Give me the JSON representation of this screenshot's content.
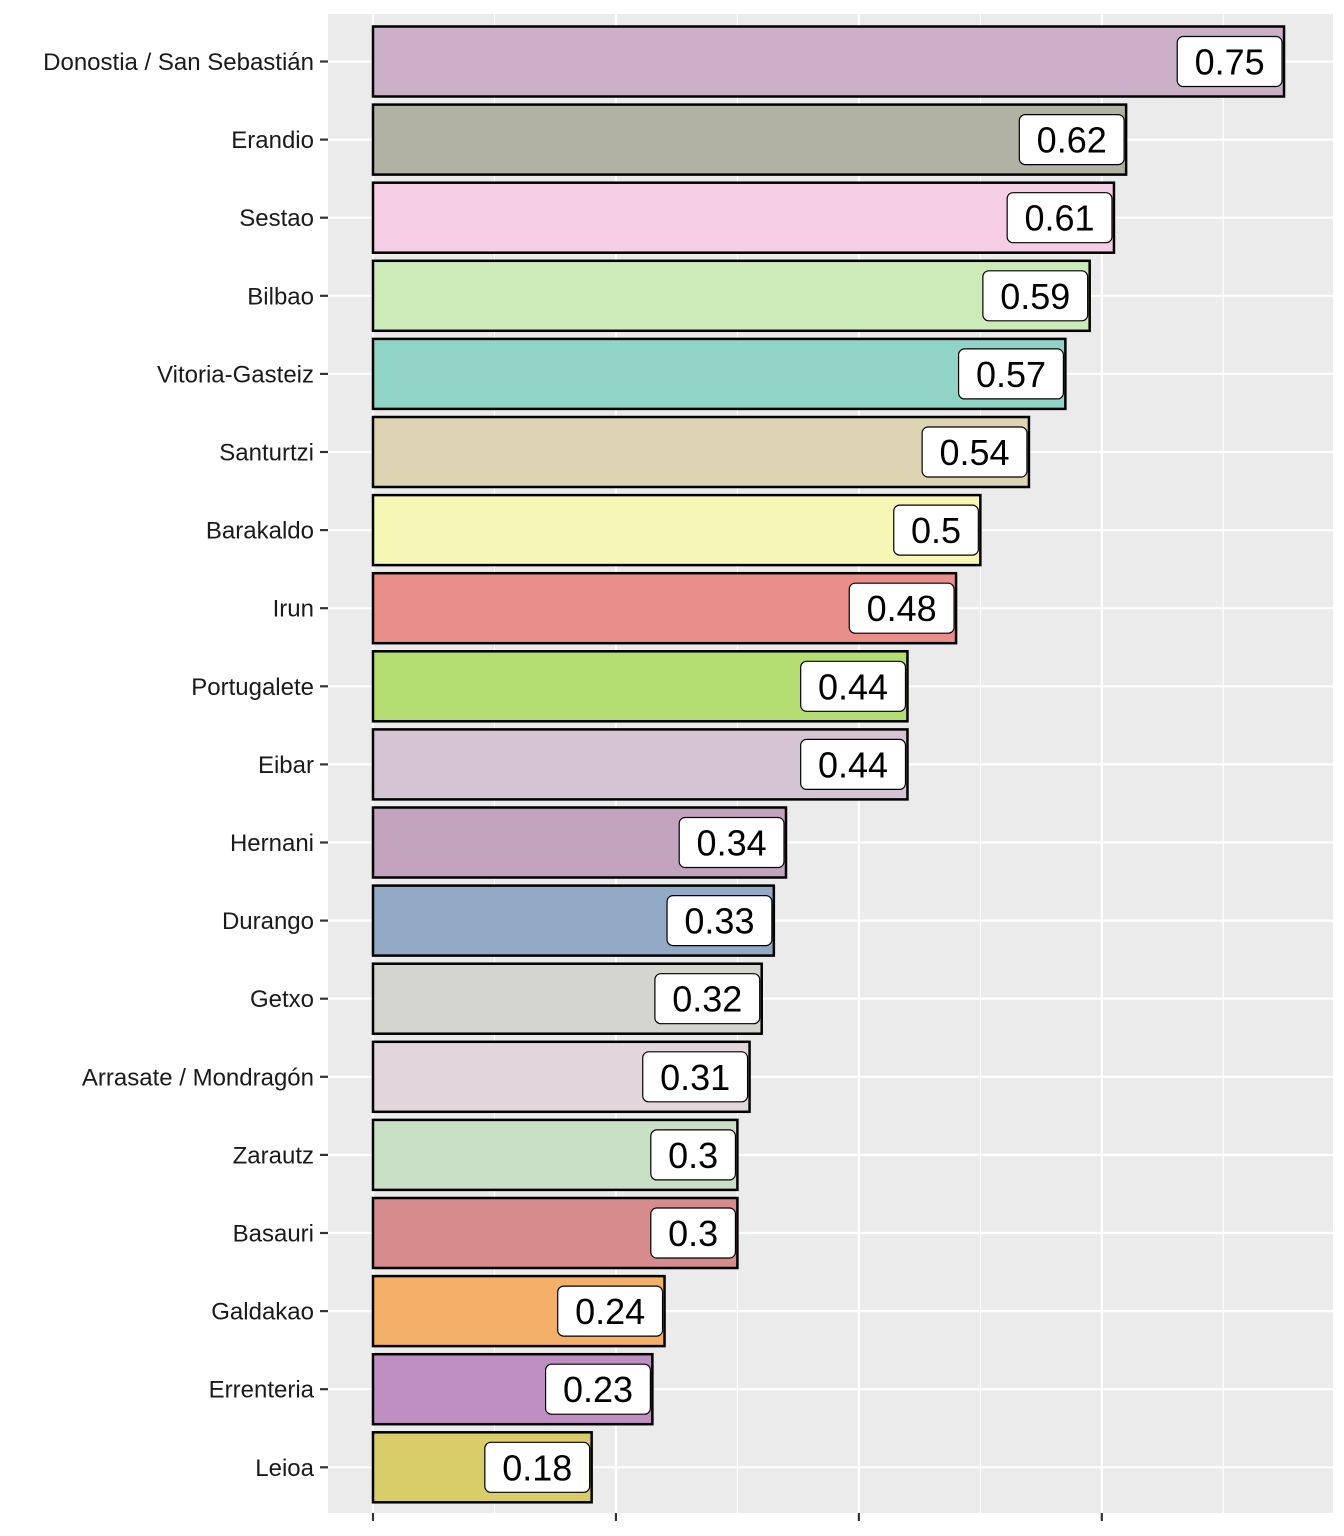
{
  "chart_data": {
    "type": "bar",
    "orientation": "horizontal",
    "title": "",
    "xlabel": "",
    "ylabel": "",
    "xlim": [
      0,
      0.77
    ],
    "grid": true,
    "categories": [
      "Donostia / San Sebastián",
      "Erandio",
      "Sestao",
      "Bilbao",
      "Vitoria-Gasteiz",
      "Santurtzi",
      "Barakaldo",
      "Irun",
      "Portugalete",
      "Eibar",
      "Hernani",
      "Durango",
      "Getxo",
      "Arrasate / Mondragón",
      "Zarautz",
      "Basauri",
      "Galdakao",
      "Errenteria",
      "Leioa"
    ],
    "values": [
      0.75,
      0.62,
      0.61,
      0.59,
      0.57,
      0.54,
      0.5,
      0.48,
      0.44,
      0.44,
      0.34,
      0.33,
      0.32,
      0.31,
      0.3,
      0.3,
      0.24,
      0.23,
      0.18
    ],
    "value_labels": [
      "0.75",
      "0.62",
      "0.61",
      "0.59",
      "0.57",
      "0.54",
      "0.5",
      "0.48",
      "0.44",
      "0.44",
      "0.34",
      "0.33",
      "0.32",
      "0.31",
      "0.3",
      "0.3",
      "0.24",
      "0.23",
      "0.18"
    ],
    "colors": [
      "#cbb0c7",
      "#b1b2a4",
      "#f5cde4",
      "#ccebb9",
      "#8fd4c6",
      "#ddd4b3",
      "#f6f7b5",
      "#ea8e89",
      "#b5de72",
      "#d4c4d4",
      "#c2a4bf",
      "#93aac6",
      "#d5d5d0",
      "#e2d6dc",
      "#cae0c6",
      "#d68b8d",
      "#f4b069",
      "#c08fc2",
      "#d9cd69"
    ],
    "panel_background": "#ebebeb",
    "gridline_color": "#ffffff",
    "bar_outline": "#000000"
  }
}
